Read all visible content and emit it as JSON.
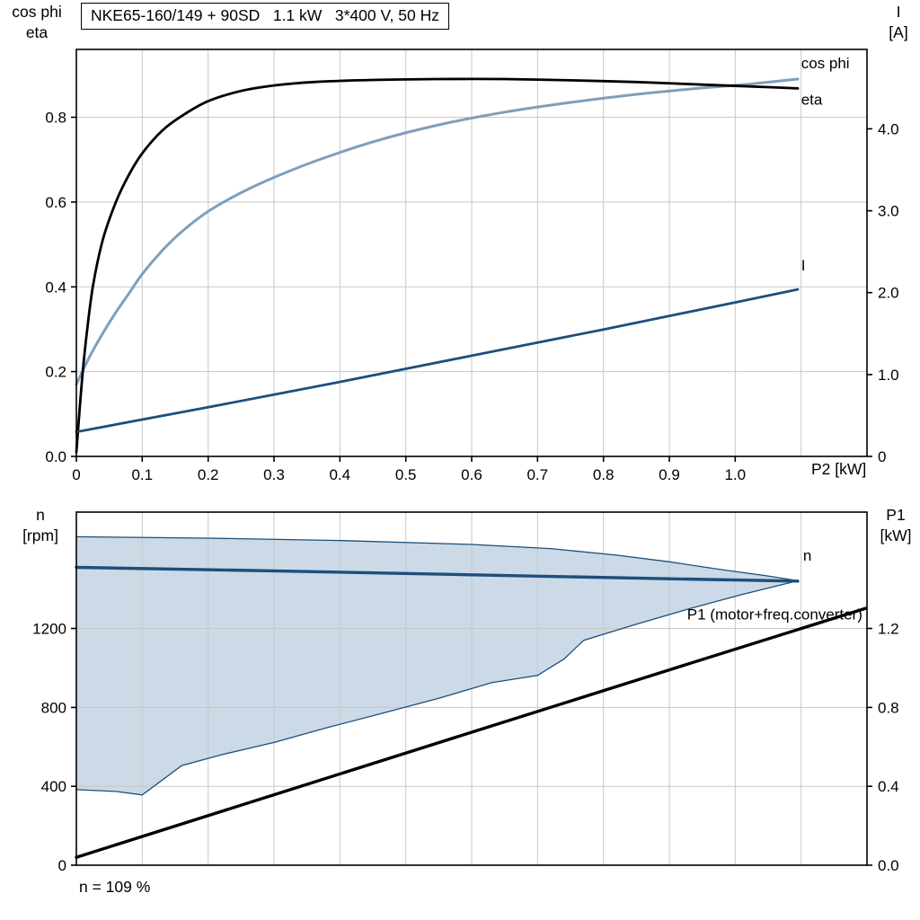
{
  "title_box": {
    "text": "NKE65-160/149 + 90SD   1.1 kW   3*400 V, 50 Hz"
  },
  "annotation": "n = 109 %",
  "colors": {
    "black": "#000000",
    "light_blue": "#7E9FBC",
    "dark_blue": "#1C4F7C",
    "envelope_fill": "#CCD9E6",
    "grid": "#C8C8C8"
  },
  "chart_data": [
    {
      "type": "line",
      "name": "motor-curves-chart",
      "x_label": "P2 [kW]",
      "x_range": [
        0,
        1.2
      ],
      "x_grid_step": 0.1,
      "x_ticks": {
        "values": [
          0,
          0.1,
          0.2,
          0.3,
          0.4,
          0.5,
          0.6,
          0.7,
          0.8,
          0.9,
          1.0
        ],
        "labels": [
          "0",
          "0.1",
          "0.2",
          "0.3",
          "0.4",
          "0.5",
          "0.6",
          "0.7",
          "0.8",
          "0.9",
          "1.0"
        ]
      },
      "left_axis": {
        "name_line1": "cos phi",
        "name_line2": "eta",
        "range": [
          0,
          0.96
        ],
        "ticks": {
          "values": [
            0,
            0.2,
            0.4,
            0.6,
            0.8
          ],
          "labels": [
            "0.0",
            "0.2",
            "0.4",
            "0.6",
            "0.8"
          ]
        }
      },
      "right_axis": {
        "name_line1": "I",
        "name_line2": "[A]",
        "range": [
          0,
          4.97
        ],
        "ticks": {
          "values": [
            0,
            1,
            2,
            3,
            4
          ],
          "labels": [
            "0",
            "1.0",
            "2.0",
            "3.0",
            "4.0"
          ]
        }
      },
      "series": [
        {
          "name": "cos phi",
          "axis": "left",
          "color": "light_blue",
          "width": 3,
          "smooth": true,
          "label": {
            "text": "cos phi",
            "x": 1.1,
            "y": 0.915,
            "anchor": "start",
            "color": "light_blue"
          },
          "points": [
            [
              0,
              0.17
            ],
            [
              0.02,
              0.235
            ],
            [
              0.04,
              0.29
            ],
            [
              0.06,
              0.34
            ],
            [
              0.08,
              0.385
            ],
            [
              0.1,
              0.43
            ],
            [
              0.13,
              0.485
            ],
            [
              0.16,
              0.53
            ],
            [
              0.2,
              0.578
            ],
            [
              0.25,
              0.622
            ],
            [
              0.3,
              0.658
            ],
            [
              0.36,
              0.695
            ],
            [
              0.45,
              0.742
            ],
            [
              0.55,
              0.782
            ],
            [
              0.65,
              0.812
            ],
            [
              0.75,
              0.835
            ],
            [
              0.85,
              0.854
            ],
            [
              0.95,
              0.869
            ],
            [
              1.02,
              0.878
            ],
            [
              1.095,
              0.89
            ]
          ]
        },
        {
          "name": "eta",
          "axis": "left",
          "color": "black",
          "width": 2.8,
          "smooth": true,
          "label": {
            "text": "eta",
            "x": 1.1,
            "y": 0.83,
            "anchor": "start",
            "color": "black"
          },
          "points": [
            [
              0,
              0.01
            ],
            [
              0.008,
              0.17
            ],
            [
              0.015,
              0.28
            ],
            [
              0.025,
              0.4
            ],
            [
              0.04,
              0.51
            ],
            [
              0.06,
              0.6
            ],
            [
              0.08,
              0.665
            ],
            [
              0.1,
              0.715
            ],
            [
              0.13,
              0.768
            ],
            [
              0.16,
              0.803
            ],
            [
              0.2,
              0.838
            ],
            [
              0.25,
              0.862
            ],
            [
              0.3,
              0.875
            ],
            [
              0.36,
              0.883
            ],
            [
              0.45,
              0.888
            ],
            [
              0.55,
              0.89
            ],
            [
              0.65,
              0.89
            ],
            [
              0.75,
              0.887
            ],
            [
              0.85,
              0.883
            ],
            [
              0.95,
              0.877
            ],
            [
              1.05,
              0.871
            ],
            [
              1.095,
              0.868
            ]
          ]
        },
        {
          "name": "I",
          "axis": "right",
          "color": "dark_blue",
          "width": 2.8,
          "smooth": false,
          "label": {
            "text": "I",
            "x": 1.1,
            "y": 2.27,
            "anchor": "start",
            "color": "dark_blue"
          },
          "points": [
            [
              0,
              0.3
            ],
            [
              0.2,
              0.6
            ],
            [
              0.4,
              0.91
            ],
            [
              0.6,
              1.23
            ],
            [
              0.8,
              1.55
            ],
            [
              1.0,
              1.88
            ],
            [
              1.095,
              2.04
            ]
          ]
        }
      ]
    },
    {
      "type": "line",
      "name": "speed-power-chart",
      "x_label": "",
      "x_range": [
        0,
        1.2
      ],
      "x_grid_step": 0.1,
      "left_axis": {
        "name_line1": "n",
        "name_line2": "[rpm]",
        "range": [
          0,
          1790
        ],
        "ticks": {
          "values": [
            0,
            400,
            800,
            1200
          ],
          "labels": [
            "0",
            "400",
            "800",
            "1200"
          ]
        }
      },
      "right_axis": {
        "name_line1": "P1",
        "name_line2": "[kW]",
        "range": [
          0,
          1.79
        ],
        "ticks": {
          "values": [
            0,
            0.4,
            0.8,
            1.2
          ],
          "labels": [
            "0.0",
            "0.4",
            "0.8",
            "1.2"
          ]
        }
      },
      "envelope": {
        "fill": "envelope_fill",
        "stroke": "dark_blue",
        "upper": [
          [
            0,
            1665
          ],
          [
            0.2,
            1658
          ],
          [
            0.4,
            1646
          ],
          [
            0.6,
            1626
          ],
          [
            0.72,
            1605
          ],
          [
            0.82,
            1572
          ],
          [
            0.9,
            1538
          ],
          [
            0.98,
            1498
          ],
          [
            1.05,
            1466
          ],
          [
            1.095,
            1442
          ]
        ],
        "lower": [
          [
            0,
            383
          ],
          [
            0.06,
            374
          ],
          [
            0.1,
            356
          ],
          [
            0.16,
            505
          ],
          [
            0.22,
            560
          ],
          [
            0.3,
            622
          ],
          [
            0.38,
            697
          ],
          [
            0.46,
            766
          ],
          [
            0.55,
            846
          ],
          [
            0.63,
            925
          ],
          [
            0.7,
            962
          ],
          [
            0.74,
            1045
          ],
          [
            0.77,
            1140
          ],
          [
            0.85,
            1222
          ],
          [
            0.93,
            1300
          ],
          [
            1.01,
            1372
          ],
          [
            1.095,
            1442
          ]
        ]
      },
      "series": [
        {
          "name": "n",
          "axis": "left",
          "color": "dark_blue",
          "width": 3.4,
          "smooth": false,
          "label": {
            "text": "n",
            "x": 1.103,
            "y": 1545,
            "anchor": "start",
            "color": "dark_blue"
          },
          "points": [
            [
              0,
              1510
            ],
            [
              0.3,
              1492
            ],
            [
              0.6,
              1472
            ],
            [
              0.9,
              1452
            ],
            [
              1.095,
              1440
            ]
          ]
        },
        {
          "name": "P1 (motor+freq.converter)",
          "axis": "right",
          "color": "black",
          "width": 3.4,
          "smooth": false,
          "label": {
            "text": "P1 (motor+freq.converter)",
            "x": 1.193,
            "y": 1.245,
            "anchor": "end",
            "color": "black"
          },
          "points": [
            [
              0,
              0.04
            ],
            [
              0.3,
              0.357
            ],
            [
              0.6,
              0.674
            ],
            [
              0.9,
              0.99
            ],
            [
              1.198,
              1.302
            ]
          ]
        }
      ]
    }
  ]
}
